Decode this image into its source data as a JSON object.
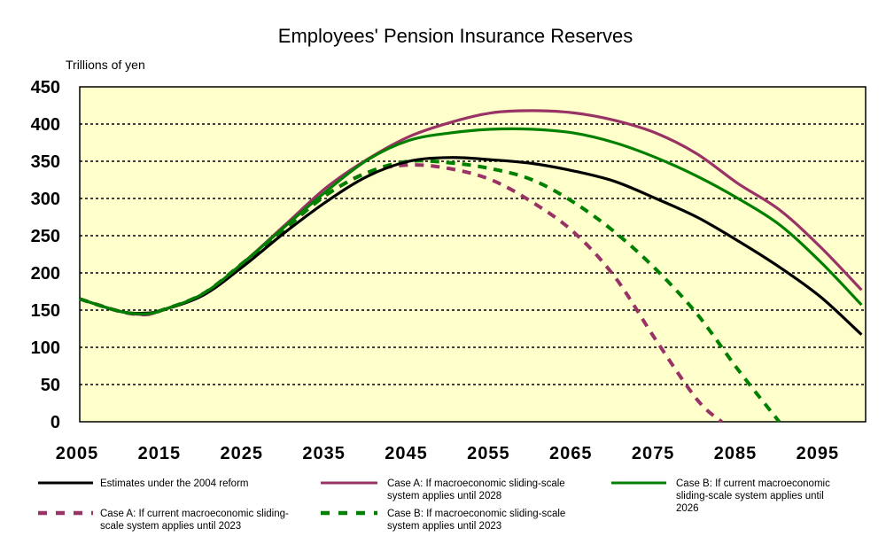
{
  "chart_data": {
    "type": "line",
    "title": "Employees' Pension Insurance Reserves",
    "ylabel": "Trillions of yen",
    "xlabel": "",
    "xlim": [
      2005,
      2100
    ],
    "ylim": [
      0,
      450
    ],
    "x_ticks": [
      "2005",
      "2015",
      "2025",
      "2035",
      "2045",
      "2055",
      "2065",
      "2075",
      "2085",
      "2095"
    ],
    "y_ticks": [
      "0",
      "50",
      "100",
      "150",
      "200",
      "250",
      "300",
      "350",
      "400",
      "450"
    ],
    "grid": true,
    "background_color": "#ffffcc",
    "series": [
      {
        "name": "Estimates under the 2004 reform",
        "color": "#000000",
        "style": "solid",
        "x": [
          2005,
          2010,
          2013,
          2015,
          2020,
          2025,
          2030,
          2035,
          2040,
          2045,
          2050,
          2055,
          2060,
          2065,
          2070,
          2075,
          2080,
          2085,
          2090,
          2095,
          2100
        ],
        "values": [
          165,
          148,
          146,
          150,
          170,
          210,
          255,
          296,
          330,
          350,
          355,
          352,
          347,
          337,
          323,
          300,
          275,
          243,
          208,
          168,
          117
        ]
      },
      {
        "name": "Case A: If macroeconomic sliding-scale system applies until 2028",
        "color": "#993366",
        "style": "solid",
        "x": [
          2005,
          2010,
          2013,
          2015,
          2020,
          2025,
          2030,
          2035,
          2040,
          2045,
          2050,
          2055,
          2060,
          2065,
          2070,
          2075,
          2080,
          2085,
          2090,
          2095,
          2100
        ],
        "values": [
          165,
          148,
          144,
          150,
          172,
          215,
          265,
          315,
          353,
          383,
          402,
          415,
          418,
          415,
          405,
          388,
          360,
          320,
          285,
          235,
          177
        ]
      },
      {
        "name": "Case B: If current macroeconomic sliding-scale system applies until 2026",
        "color": "#008000",
        "style": "solid",
        "x": [
          2005,
          2010,
          2013,
          2015,
          2020,
          2025,
          2030,
          2035,
          2040,
          2045,
          2050,
          2055,
          2060,
          2065,
          2070,
          2075,
          2080,
          2085,
          2090,
          2095,
          2100
        ],
        "values": [
          165,
          148,
          145,
          150,
          172,
          215,
          263,
          310,
          352,
          378,
          388,
          393,
          393,
          388,
          375,
          355,
          330,
          300,
          265,
          215,
          157
        ]
      },
      {
        "name": "Case A: If current macroeconomic sliding-scale system applies until 2023",
        "color": "#993366",
        "style": "dashed",
        "x": [
          2005,
          2010,
          2013,
          2015,
          2020,
          2025,
          2030,
          2035,
          2040,
          2045,
          2050,
          2055,
          2060,
          2065,
          2070,
          2075,
          2080,
          2083
        ],
        "values": [
          165,
          148,
          144,
          150,
          172,
          215,
          260,
          305,
          335,
          345,
          340,
          325,
          295,
          255,
          195,
          110,
          30,
          0
        ]
      },
      {
        "name": "Case B: If macroeconomic sliding-scale system applies until 2023",
        "color": "#008000",
        "style": "dashed",
        "x": [
          2005,
          2010,
          2013,
          2015,
          2020,
          2025,
          2030,
          2035,
          2040,
          2045,
          2050,
          2055,
          2060,
          2065,
          2070,
          2075,
          2080,
          2085,
          2090
        ],
        "values": [
          165,
          148,
          145,
          150,
          172,
          215,
          260,
          305,
          335,
          350,
          348,
          340,
          325,
          295,
          255,
          205,
          145,
          70,
          0
        ]
      }
    ],
    "legend": {
      "placement": "bottom",
      "entries": [
        {
          "series": 0,
          "lines": [
            "Estimates under the 2004 reform"
          ]
        },
        {
          "series": 1,
          "lines": [
            "Case A: If macroeconomic sliding-scale",
            "system applies until 2028"
          ]
        },
        {
          "series": 2,
          "lines": [
            "Case B: If current macroeconomic",
            "sliding-scale system applies until",
            "2026"
          ]
        },
        {
          "series": 3,
          "lines": [
            "Case A: If current macroeconomic sliding-",
            "scale system applies until 2023"
          ]
        },
        {
          "series": 4,
          "lines": [
            "Case B: If macroeconomic sliding-scale",
            "system applies until 2023"
          ]
        }
      ]
    }
  }
}
